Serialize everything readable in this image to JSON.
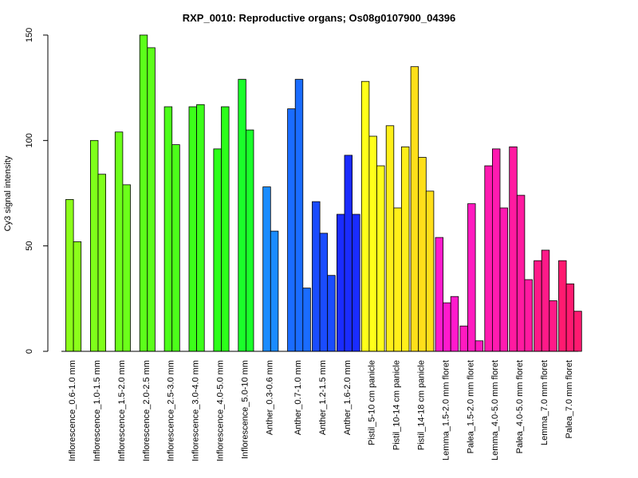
{
  "chart_data": {
    "type": "bar",
    "title": "RXP_0010: Reproductive organs; Os08g0107900_04396",
    "xlabel": "",
    "ylabel": "Cy3 signal intensity",
    "ylim": [
      0,
      150
    ],
    "yticks": [
      0,
      50,
      100,
      150
    ],
    "grid": false,
    "legend": "none",
    "groups": [
      {
        "label": "Inflorescence_0.6-1.0 mm",
        "values": [
          72,
          52
        ],
        "color": "#8cff1a"
      },
      {
        "label": "Inflorescence_1.0-1.5 mm",
        "values": [
          100,
          84
        ],
        "color": "#7fff1a"
      },
      {
        "label": "Inflorescence_1.5-2.0 mm",
        "values": [
          104,
          79
        ],
        "color": "#6cff1a"
      },
      {
        "label": "Inflorescence_2.0-2.5 mm",
        "values": [
          150,
          144
        ],
        "color": "#5cff1a"
      },
      {
        "label": "Inflorescence_2.5-3.0 mm",
        "values": [
          116,
          98
        ],
        "color": "#4cff1a"
      },
      {
        "label": "Inflorescence_3.0-4.0 mm",
        "values": [
          116,
          117
        ],
        "color": "#3cff1a"
      },
      {
        "label": "Inflorescence_4.0-5.0 mm",
        "values": [
          96,
          116
        ],
        "color": "#2cff1a"
      },
      {
        "label": "Inflorescence_5.0-10 mm",
        "values": [
          129,
          105
        ],
        "color": "#1aff2a"
      },
      {
        "label": "Anther_0.3-0.6 mm",
        "values": [
          78,
          57
        ],
        "color": "#1a8cff"
      },
      {
        "label": "Anther_0.7-1.0 mm",
        "values": [
          115,
          129,
          30
        ],
        "color": "#1a6cff"
      },
      {
        "label": "Anther_1.2-1.5 mm",
        "values": [
          71,
          56,
          36
        ],
        "color": "#1a4cff"
      },
      {
        "label": "Anther_1.6-2.0 mm",
        "values": [
          65,
          93,
          65
        ],
        "color": "#1a2cff"
      },
      {
        "label": "Pistil_5-10 cm panicle",
        "values": [
          128,
          102,
          88
        ],
        "color": "#ffff1a"
      },
      {
        "label": "Pistil_10-14 cm panicle",
        "values": [
          107,
          68,
          97
        ],
        "color": "#ffef1a"
      },
      {
        "label": "Pistil_14-18 cm panicle",
        "values": [
          135,
          92,
          76
        ],
        "color": "#ffdf1a"
      },
      {
        "label": "Lemma_1.5-2.0 mm floret",
        "values": [
          54,
          23,
          26
        ],
        "color": "#ff1acc"
      },
      {
        "label": "Palea_1.5-2.0 mm floret",
        "values": [
          12,
          70,
          5
        ],
        "color": "#ff1ac0"
      },
      {
        "label": "Lemma_4.0-5.0 mm floret",
        "values": [
          88,
          96,
          68
        ],
        "color": "#ff1ab0"
      },
      {
        "label": "Palea_4.0-5.0 mm floret",
        "values": [
          97,
          74,
          34
        ],
        "color": "#ff1aa0"
      },
      {
        "label": "Lemma_7.0 mm floret",
        "values": [
          43,
          48,
          24
        ],
        "color": "#ff1a88"
      },
      {
        "label": "Palea_7.0 mm floret",
        "values": [
          43,
          32,
          19
        ],
        "color": "#ff1a70"
      }
    ]
  }
}
